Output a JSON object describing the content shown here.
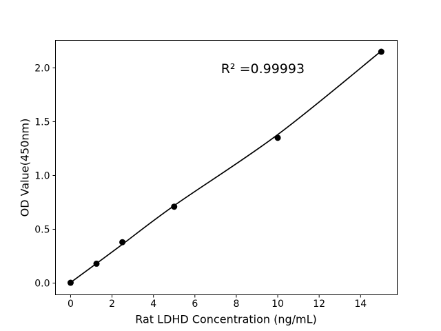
{
  "chart_data": {
    "type": "scatter",
    "title": "",
    "xlabel": "Rat LDHD Concentration (ng/mL)",
    "ylabel": "OD Value(450nm)",
    "annotation": {
      "text": "R² =0.99993",
      "x": 9.28,
      "y": 1.99
    },
    "r_squared": 0.99993,
    "x_tick_values": [
      0,
      2,
      4,
      6,
      8,
      10,
      12,
      14
    ],
    "x_tick_labels": [
      "0",
      "2",
      "4",
      "6",
      "8",
      "10",
      "12",
      "14"
    ],
    "y_tick_values": [
      0,
      0.5,
      1,
      1.5,
      2
    ],
    "y_tick_labels": [
      "0.0",
      "0.5",
      "1.0",
      "1.5",
      "2.0"
    ],
    "xlim": [
      -0.73,
      15.77
    ],
    "ylim": [
      -0.109,
      2.256
    ],
    "grid": false,
    "legend": "none",
    "points": [
      [
        0,
        0.003
      ],
      [
        1.25,
        0.18
      ],
      [
        2.5,
        0.38
      ],
      [
        5,
        0.71
      ],
      [
        10,
        1.35
      ],
      [
        15,
        2.15
      ]
    ],
    "fit_line_points": [
      [
        0,
        0.005
      ],
      [
        1.25,
        0.182
      ],
      [
        2.5,
        0.36
      ],
      [
        5,
        0.72
      ],
      [
        10,
        1.38
      ],
      [
        15,
        2.157
      ]
    ],
    "colors": {
      "marker": "#000000",
      "line": "#000000",
      "text": "#000000",
      "axes": "#000000",
      "background": "#ffffff"
    }
  }
}
